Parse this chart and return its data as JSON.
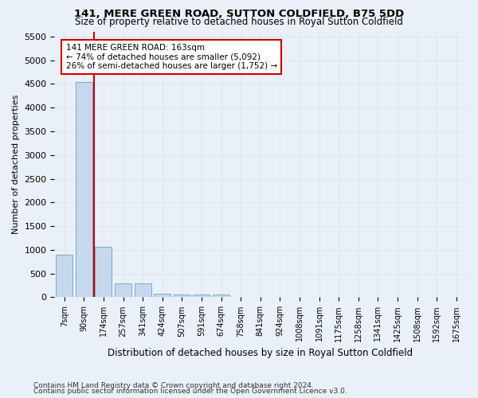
{
  "title1": "141, MERE GREEN ROAD, SUTTON COLDFIELD, B75 5DD",
  "title2": "Size of property relative to detached houses in Royal Sutton Coldfield",
  "xlabel": "Distribution of detached houses by size in Royal Sutton Coldfield",
  "ylabel": "Number of detached properties",
  "footnote1": "Contains HM Land Registry data © Crown copyright and database right 2024.",
  "footnote2": "Contains public sector information licensed under the Open Government Licence v3.0.",
  "bin_labels": [
    "7sqm",
    "90sqm",
    "174sqm",
    "257sqm",
    "341sqm",
    "424sqm",
    "507sqm",
    "591sqm",
    "674sqm",
    "758sqm",
    "841sqm",
    "924sqm",
    "1008sqm",
    "1091sqm",
    "1175sqm",
    "1258sqm",
    "1341sqm",
    "1425sqm",
    "1508sqm",
    "1592sqm",
    "1675sqm"
  ],
  "bar_values": [
    900,
    4550,
    1060,
    300,
    290,
    80,
    65,
    55,
    65,
    0,
    0,
    0,
    0,
    0,
    0,
    0,
    0,
    0,
    0,
    0,
    0
  ],
  "bar_color": "#c5d8ed",
  "bar_edge_color": "#7aaac8",
  "grid_color": "#dce6f1",
  "property_line_x": 1.5,
  "property_line_color": "#cc0000",
  "annotation_text": "141 MERE GREEN ROAD: 163sqm\n← 74% of detached houses are smaller (5,092)\n26% of semi-detached houses are larger (1,752) →",
  "annotation_box_color": "#ffffff",
  "annotation_box_edge": "#cc0000",
  "ylim": [
    0,
    5600
  ],
  "yticks": [
    0,
    500,
    1000,
    1500,
    2000,
    2500,
    3000,
    3500,
    4000,
    4500,
    5000,
    5500
  ],
  "bg_color": "#eaf0f8",
  "plot_bg_color": "#eaf0f8"
}
